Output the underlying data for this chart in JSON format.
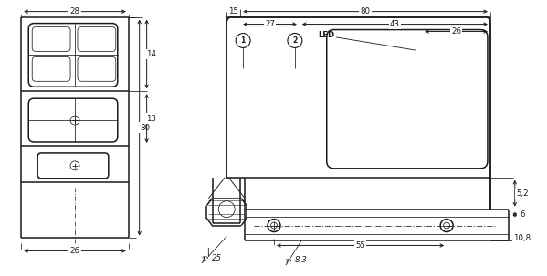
{
  "bg_color": "#ffffff",
  "lc": "#1a1a1a",
  "lw": 1.1,
  "tlw": 0.55,
  "fs": 6.2,
  "fig_w": 5.99,
  "fig_h": 3.03,
  "dpi": 100
}
